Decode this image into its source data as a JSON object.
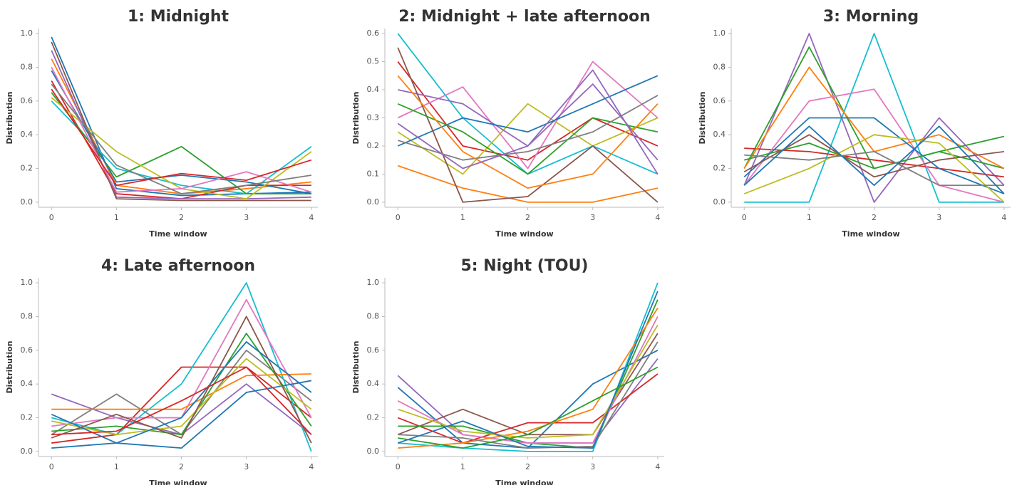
{
  "chart_data": [
    {
      "type": "line",
      "title": "1: Midnight",
      "xlabel": "Time window",
      "ylabel": "Distribution",
      "x": [
        0,
        1,
        2,
        3,
        4
      ],
      "xlim": [
        -0.2,
        4.1
      ],
      "xticks": [
        0,
        1,
        2,
        3,
        4
      ],
      "ylim": [
        -0.03,
        1.03
      ],
      "yticks": [
        {
          "value": 0,
          "label": "0.0"
        },
        0.2,
        0.4,
        0.6,
        0.8,
        {
          "value": 1,
          "label": "1.0"
        }
      ],
      "grid": false,
      "series": [
        {
          "color": "#1f77b4",
          "values": [
            0.98,
            0.08,
            0.04,
            0.05,
            0.06
          ]
        },
        {
          "color": "#ff7f0e",
          "values": [
            0.85,
            0.1,
            0.05,
            0.08,
            0.12
          ]
        },
        {
          "color": "#17becf",
          "values": [
            0.6,
            0.2,
            0.1,
            0.05,
            0.33
          ]
        },
        {
          "color": "#d62728",
          "values": [
            0.72,
            0.05,
            0.02,
            0.1,
            0.1
          ]
        },
        {
          "color": "#9467bd",
          "values": [
            0.9,
            0.03,
            0.02,
            0.02,
            0.03
          ]
        },
        {
          "color": "#2ca02c",
          "values": [
            0.65,
            0.15,
            0.33,
            0.05,
            0.05
          ]
        },
        {
          "color": "#1f77b4",
          "values": [
            0.78,
            0.12,
            0.16,
            0.12,
            0.05
          ]
        },
        {
          "color": "#bcbd22",
          "values": [
            0.62,
            0.3,
            0.08,
            0.02,
            0.3
          ]
        },
        {
          "color": "#8c564b",
          "values": [
            0.95,
            0.02,
            0.01,
            0.01,
            0.01
          ]
        },
        {
          "color": "#e377c2",
          "values": [
            0.8,
            0.06,
            0.08,
            0.18,
            0.06
          ]
        },
        {
          "color": "#7f7f7f",
          "values": [
            0.7,
            0.22,
            0.05,
            0.1,
            0.16
          ]
        },
        {
          "color": "#d62728",
          "values": [
            0.67,
            0.1,
            0.17,
            0.13,
            0.25
          ]
        }
      ]
    },
    {
      "type": "line",
      "title": "2: Midnight + late afternoon",
      "xlabel": "Time window",
      "ylabel": "Distribution",
      "x": [
        0,
        1,
        2,
        3,
        4
      ],
      "xlim": [
        -0.2,
        4.1
      ],
      "xticks": [
        0,
        1,
        2,
        3,
        4
      ],
      "ylim": [
        -0.018,
        0.618
      ],
      "yticks": [
        {
          "value": 0,
          "label": "0.0"
        },
        0.1,
        0.2,
        0.3,
        0.4,
        0.5,
        0.6
      ],
      "grid": false,
      "series": [
        {
          "color": "#17becf",
          "values": [
            0.6,
            0.3,
            0.1,
            0.2,
            0.1
          ]
        },
        {
          "color": "#d62728",
          "values": [
            0.5,
            0.2,
            0.15,
            0.3,
            0.2
          ]
        },
        {
          "color": "#e377c2",
          "values": [
            0.3,
            0.41,
            0.12,
            0.5,
            0.3
          ]
        },
        {
          "color": "#bcbd22",
          "values": [
            0.25,
            0.1,
            0.35,
            0.2,
            0.3
          ]
        },
        {
          "color": "#ff7f0e",
          "values": [
            0.13,
            0.05,
            0.0,
            0.0,
            0.05
          ]
        },
        {
          "color": "#9467bd",
          "values": [
            0.4,
            0.35,
            0.2,
            0.42,
            0.15
          ]
        },
        {
          "color": "#1f77b4",
          "values": [
            0.2,
            0.3,
            0.25,
            0.35,
            0.45
          ]
        },
        {
          "color": "#8c564b",
          "values": [
            0.55,
            0.0,
            0.02,
            0.2,
            0.0
          ]
        },
        {
          "color": "#2ca02c",
          "values": [
            0.35,
            0.25,
            0.1,
            0.3,
            0.25
          ]
        },
        {
          "color": "#7f7f7f",
          "values": [
            0.22,
            0.15,
            0.18,
            0.25,
            0.38
          ]
        },
        {
          "color": "#ff7f0e",
          "values": [
            0.45,
            0.18,
            0.05,
            0.1,
            0.35
          ]
        },
        {
          "color": "#9467bd",
          "values": [
            0.28,
            0.12,
            0.2,
            0.47,
            0.1
          ]
        }
      ]
    },
    {
      "type": "line",
      "title": "3: Morning",
      "xlabel": "Time window",
      "ylabel": "Distribution",
      "x": [
        0,
        1,
        2,
        3,
        4
      ],
      "xlim": [
        -0.2,
        4.1
      ],
      "xticks": [
        0,
        1,
        2,
        3,
        4
      ],
      "ylim": [
        -0.03,
        1.03
      ],
      "yticks": [
        {
          "value": 0,
          "label": "0.0"
        },
        0.2,
        0.4,
        0.6,
        0.8,
        {
          "value": 1,
          "label": "1.0"
        }
      ],
      "grid": false,
      "series": [
        {
          "color": "#9467bd",
          "values": [
            0.1,
            1.0,
            0.0,
            0.5,
            0.1
          ]
        },
        {
          "color": "#17becf",
          "values": [
            0.0,
            0.0,
            1.0,
            0.0,
            0.0
          ]
        },
        {
          "color": "#2ca02c",
          "values": [
            0.2,
            0.92,
            0.2,
            0.3,
            0.2
          ]
        },
        {
          "color": "#d62728",
          "values": [
            0.32,
            0.3,
            0.25,
            0.2,
            0.15
          ]
        },
        {
          "color": "#e377c2",
          "values": [
            0.1,
            0.6,
            0.67,
            0.1,
            0.0
          ]
        },
        {
          "color": "#ff7f0e",
          "values": [
            0.2,
            0.8,
            0.3,
            0.4,
            0.2
          ]
        },
        {
          "color": "#1f77b4",
          "values": [
            0.15,
            0.5,
            0.5,
            0.2,
            0.05
          ]
        },
        {
          "color": "#2ca02c",
          "values": [
            0.25,
            0.35,
            0.2,
            0.3,
            0.39
          ]
        },
        {
          "color": "#bcbd22",
          "values": [
            0.05,
            0.2,
            0.4,
            0.35,
            0.0
          ]
        },
        {
          "color": "#8c564b",
          "values": [
            0.18,
            0.4,
            0.15,
            0.25,
            0.3
          ]
        },
        {
          "color": "#7f7f7f",
          "values": [
            0.28,
            0.25,
            0.3,
            0.1,
            0.1
          ]
        },
        {
          "color": "#1f77b4",
          "values": [
            0.1,
            0.45,
            0.1,
            0.45,
            0.05
          ]
        }
      ]
    },
    {
      "type": "line",
      "title": "4: Late afternoon",
      "xlabel": "Time window",
      "ylabel": "Distribution",
      "x": [
        0,
        1,
        2,
        3,
        4
      ],
      "xlim": [
        -0.2,
        4.1
      ],
      "xticks": [
        0,
        1,
        2,
        3,
        4
      ],
      "ylim": [
        -0.03,
        1.03
      ],
      "yticks": [
        {
          "value": 0,
          "label": "0.0"
        },
        0.2,
        0.4,
        0.6,
        0.8,
        {
          "value": 1,
          "label": "1.0"
        }
      ],
      "grid": false,
      "series": [
        {
          "color": "#9467bd",
          "values": [
            0.34,
            0.2,
            0.1,
            0.4,
            0.1
          ]
        },
        {
          "color": "#7f7f7f",
          "values": [
            0.1,
            0.34,
            0.1,
            0.6,
            0.3
          ]
        },
        {
          "color": "#d62728",
          "values": [
            0.05,
            0.1,
            0.5,
            0.5,
            0.2
          ]
        },
        {
          "color": "#17becf",
          "values": [
            0.2,
            0.1,
            0.4,
            1.0,
            0.0
          ]
        },
        {
          "color": "#e377c2",
          "values": [
            0.15,
            0.2,
            0.2,
            0.9,
            0.2
          ]
        },
        {
          "color": "#ff7f0e",
          "values": [
            0.25,
            0.25,
            0.25,
            0.45,
            0.46
          ]
        },
        {
          "color": "#1f77b4",
          "values": [
            0.02,
            0.05,
            0.02,
            0.35,
            0.42
          ]
        },
        {
          "color": "#2ca02c",
          "values": [
            0.12,
            0.15,
            0.1,
            0.7,
            0.15
          ]
        },
        {
          "color": "#bcbd22",
          "values": [
            0.18,
            0.1,
            0.15,
            0.55,
            0.25
          ]
        },
        {
          "color": "#8c564b",
          "values": [
            0.08,
            0.22,
            0.08,
            0.8,
            0.05
          ]
        },
        {
          "color": "#1f77b4",
          "values": [
            0.22,
            0.05,
            0.2,
            0.65,
            0.35
          ]
        },
        {
          "color": "#d62728",
          "values": [
            0.1,
            0.12,
            0.3,
            0.5,
            0.1
          ]
        }
      ]
    },
    {
      "type": "line",
      "title": "5: Night (TOU)",
      "xlabel": "Time window",
      "ylabel": "Distribution",
      "x": [
        0,
        1,
        2,
        3,
        4
      ],
      "xlim": [
        -0.2,
        4.1
      ],
      "xticks": [
        0,
        1,
        2,
        3,
        4
      ],
      "ylim": [
        -0.03,
        1.03
      ],
      "yticks": [
        {
          "value": 0,
          "label": "0.0"
        },
        0.2,
        0.4,
        0.6,
        0.8,
        {
          "value": 1,
          "label": "1.0"
        }
      ],
      "grid": false,
      "series": [
        {
          "color": "#9467bd",
          "values": [
            0.45,
            0.1,
            0.05,
            0.05,
            0.55
          ]
        },
        {
          "color": "#1f77b4",
          "values": [
            0.38,
            0.05,
            0.02,
            0.4,
            0.6
          ]
        },
        {
          "color": "#8c564b",
          "values": [
            0.1,
            0.25,
            0.1,
            0.1,
            0.7
          ]
        },
        {
          "color": "#d62728",
          "values": [
            0.2,
            0.05,
            0.17,
            0.17,
            0.46
          ]
        },
        {
          "color": "#17becf",
          "values": [
            0.05,
            0.02,
            0.0,
            0.0,
            1.0
          ]
        },
        {
          "color": "#2ca02c",
          "values": [
            0.15,
            0.15,
            0.05,
            0.02,
            0.9
          ]
        },
        {
          "color": "#e377c2",
          "values": [
            0.3,
            0.1,
            0.05,
            0.05,
            0.8
          ]
        },
        {
          "color": "#ff7f0e",
          "values": [
            0.02,
            0.05,
            0.12,
            0.25,
            0.85
          ]
        },
        {
          "color": "#7f7f7f",
          "values": [
            0.1,
            0.08,
            0.02,
            0.03,
            0.65
          ]
        },
        {
          "color": "#bcbd22",
          "values": [
            0.25,
            0.12,
            0.08,
            0.1,
            0.75
          ]
        },
        {
          "color": "#1f77b4",
          "values": [
            0.05,
            0.18,
            0.03,
            0.02,
            0.95
          ]
        },
        {
          "color": "#2ca02c",
          "values": [
            0.08,
            0.02,
            0.1,
            0.3,
            0.5
          ]
        }
      ]
    }
  ]
}
